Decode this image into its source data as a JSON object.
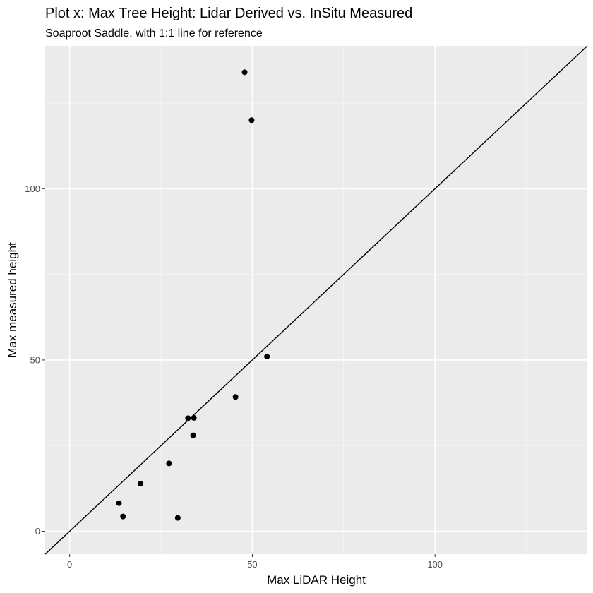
{
  "chart_data": {
    "type": "scatter",
    "title": "Plot x: Max Tree Height: Lidar Derived vs. InSitu Measured",
    "subtitle": "Soaproot Saddle, with 1:1 line for reference",
    "xlabel": "Max LiDAR Height",
    "ylabel": "Max measured height",
    "xlim": [
      -6.7,
      141.7
    ],
    "ylim": [
      -6.7,
      141.7
    ],
    "x_ticks": [
      0,
      50,
      100
    ],
    "y_ticks": [
      0,
      50,
      100
    ],
    "x_tick_labels": [
      "0",
      "50",
      "100"
    ],
    "y_tick_labels": [
      "0",
      "50",
      "100"
    ],
    "grid": true,
    "reference_line": {
      "slope": 1,
      "intercept": 0
    },
    "points": [
      {
        "x": 13.5,
        "y": 8.2
      },
      {
        "x": 14.6,
        "y": 4.3
      },
      {
        "x": 19.4,
        "y": 13.9
      },
      {
        "x": 27.2,
        "y": 19.8
      },
      {
        "x": 29.6,
        "y": 3.9
      },
      {
        "x": 32.4,
        "y": 33.0
      },
      {
        "x": 34.0,
        "y": 33.1
      },
      {
        "x": 33.8,
        "y": 28.0
      },
      {
        "x": 45.4,
        "y": 39.2
      },
      {
        "x": 47.9,
        "y": 134.0
      },
      {
        "x": 49.8,
        "y": 120.0
      },
      {
        "x": 54.0,
        "y": 51.0
      }
    ]
  },
  "colors": {
    "panel_background": "#ebebeb",
    "major_grid": "#ffffff",
    "minor_grid": "#f5f5f5",
    "point": "#000000",
    "reference_line": "#000000",
    "tick_text": "#4d4d4d",
    "tick_mark": "#333333"
  }
}
